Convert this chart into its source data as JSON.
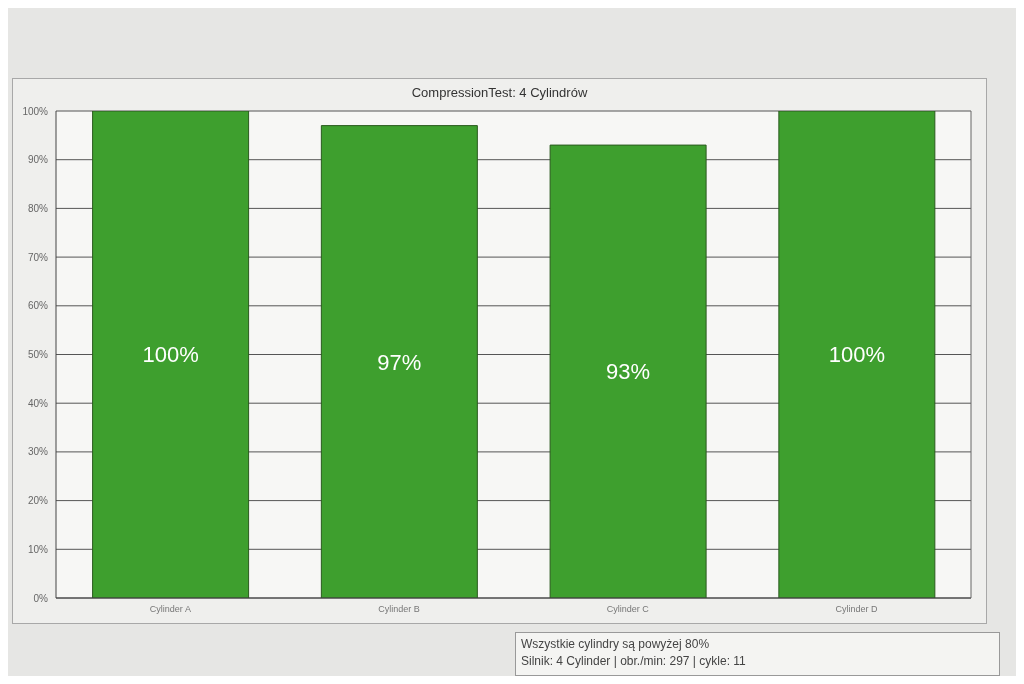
{
  "chart_data": {
    "type": "bar",
    "title": "CompressionTest: 4 Cylindrów",
    "categories": [
      "Cylinder A",
      "Cylinder B",
      "Cylinder C",
      "Cylinder D"
    ],
    "values": [
      100,
      97,
      93,
      100
    ],
    "value_labels": [
      "100%",
      "97%",
      "93%",
      "100%"
    ],
    "color": "#3e9f2e",
    "ylim": [
      0,
      100
    ],
    "yticks": [
      {
        "value": 0,
        "label": "0%"
      },
      {
        "value": 10,
        "label": "10%"
      },
      {
        "value": 20,
        "label": "20%"
      },
      {
        "value": 30,
        "label": "30%"
      },
      {
        "value": 40,
        "label": "40%"
      },
      {
        "value": 50,
        "label": "50%"
      },
      {
        "value": 60,
        "label": "60%"
      },
      {
        "value": 70,
        "label": "70%"
      },
      {
        "value": 80,
        "label": "80%"
      },
      {
        "value": 90,
        "label": "90%"
      },
      {
        "value": 100,
        "label": "100%"
      }
    ],
    "grid": "y",
    "annotations": [
      "Wszystkie cylindry są powyżej 80%",
      "Silnik: 4 Cylinder | obr./min: 297 | cykle: 11"
    ]
  }
}
